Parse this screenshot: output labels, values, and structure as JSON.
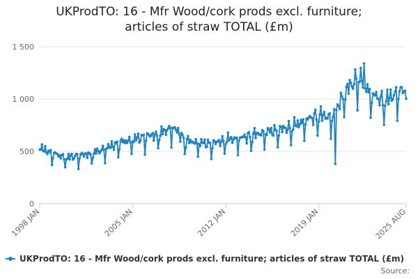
{
  "chart_data": {
    "type": "line",
    "title_line1": "UKProdTO: 16 - Mfr Wood/cork prods excl. furniture;",
    "title_line2": "articles of straw TOTAL (£m)",
    "ylim": [
      0,
      1500
    ],
    "y_ticks": [
      0,
      500,
      1000,
      1500
    ],
    "y_tick_labels": [
      "0",
      "500",
      "1 000",
      "1 500"
    ],
    "x_range": [
      "1998 JAN",
      "2025 AUG"
    ],
    "x_ticks": [
      "1998 JAN",
      "2005 JAN",
      "2012 JAN",
      "2019 JAN",
      "2025 AUG"
    ],
    "grid": "horizontal",
    "legend_position": "bottom-left",
    "series": [
      {
        "name": "UKProdTO: 16 - Mfr Wood/cork prods excl. furniture; articles of straw TOTAL (£m)",
        "color": "#1f82c2",
        "annual_levels": {
          "years": [
            1998,
            1999,
            2000,
            2001,
            2002,
            2003,
            2004,
            2005,
            2006,
            2007,
            2008,
            2009,
            2010,
            2011,
            2012,
            2013,
            2014,
            2015,
            2016,
            2017,
            2018,
            2019,
            2020,
            2021,
            2022,
            2023,
            2024,
            2025
          ],
          "values": [
            520,
            470,
            430,
            450,
            470,
            520,
            570,
            600,
            630,
            650,
            720,
            590,
            570,
            560,
            600,
            610,
            640,
            670,
            690,
            720,
            780,
            830,
            810,
            1050,
            1190,
            1020,
            960,
            1050
          ]
        },
        "notable_points": [
          {
            "date": "2020-04",
            "value": 380
          },
          {
            "date": "2022-06",
            "value": 1340
          }
        ]
      }
    ]
  },
  "legend": {
    "label": "UKProdTO: 16 - Mfr Wood/cork prods excl. furniture; articles of straw TOTAL (£m)"
  },
  "source_label": "Source:"
}
